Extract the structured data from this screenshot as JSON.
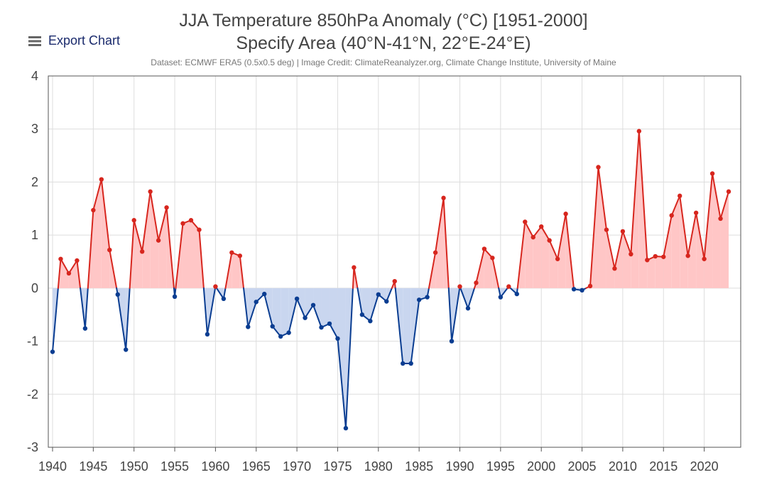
{
  "export_button": {
    "label": "Export Chart",
    "icon": "menu-icon"
  },
  "chart_data": {
    "type": "area",
    "title": "JJA Temperature 850hPa Anomaly (°C) [1951-2000]",
    "subtitle": "Specify Area (40°N-41°N, 22°E-24°E)",
    "credit": "Dataset: ECMWF ERA5 (0.5x0.5 deg) | Image Credit: ClimateReanalyzer.org, Climate Change Institute, University of Maine",
    "xlabel": "",
    "ylabel": "",
    "xlim": [
      1940,
      2023
    ],
    "ylim": [
      -3,
      4
    ],
    "grid": true,
    "x_ticks": [
      "1940",
      "1945",
      "1950",
      "1955",
      "1960",
      "1965",
      "1970",
      "1975",
      "1980",
      "1985",
      "1990",
      "1995",
      "2000",
      "2005",
      "2010",
      "2015",
      "2020"
    ],
    "y_ticks": [
      "4",
      "3",
      "2",
      "1",
      "0",
      "-1",
      "-2",
      "-3"
    ],
    "colors": {
      "positive_line": "#d7261e",
      "positive_fill": "#ffc6c6",
      "negative_line": "#0a3d91",
      "negative_fill": "#c9d6ef",
      "grid": "#dddddd",
      "axis": "#555555"
    },
    "x": [
      1940,
      1941,
      1942,
      1943,
      1944,
      1945,
      1946,
      1947,
      1948,
      1949,
      1950,
      1951,
      1952,
      1953,
      1954,
      1955,
      1956,
      1957,
      1958,
      1959,
      1960,
      1961,
      1962,
      1963,
      1964,
      1965,
      1966,
      1967,
      1968,
      1969,
      1970,
      1971,
      1972,
      1973,
      1974,
      1975,
      1976,
      1977,
      1978,
      1979,
      1980,
      1981,
      1982,
      1983,
      1984,
      1985,
      1986,
      1987,
      1988,
      1989,
      1990,
      1991,
      1992,
      1993,
      1994,
      1995,
      1996,
      1997,
      1998,
      1999,
      2000,
      2001,
      2002,
      2003,
      2004,
      2005,
      2006,
      2007,
      2008,
      2009,
      2010,
      2011,
      2012,
      2013,
      2014,
      2015,
      2016,
      2017,
      2018,
      2019,
      2020,
      2021,
      2022,
      2023
    ],
    "values": [
      -1.2,
      0.55,
      0.28,
      0.52,
      -0.76,
      1.47,
      2.05,
      0.72,
      -0.12,
      -1.16,
      1.28,
      0.69,
      1.82,
      0.9,
      1.52,
      -0.16,
      1.22,
      1.28,
      1.1,
      -0.87,
      0.03,
      -0.2,
      0.67,
      0.61,
      -0.73,
      -0.26,
      -0.11,
      -0.72,
      -0.91,
      -0.84,
      -0.2,
      -0.56,
      -0.32,
      -0.74,
      -0.67,
      -0.95,
      -2.64,
      0.39,
      -0.5,
      -0.62,
      -0.12,
      -0.25,
      0.13,
      -1.42,
      -1.42,
      -0.22,
      -0.17,
      0.67,
      1.7,
      -1.0,
      0.03,
      -0.38,
      0.1,
      0.74,
      0.57,
      -0.17,
      0.03,
      -0.11,
      1.25,
      0.96,
      1.16,
      0.9,
      0.55,
      1.4,
      -0.02,
      -0.04,
      0.04,
      2.28,
      1.1,
      0.37,
      1.07,
      0.64,
      2.96,
      0.53,
      0.6,
      0.59,
      1.37,
      1.74,
      0.61,
      1.42,
      0.55,
      2.16,
      1.31,
      1.82
    ]
  }
}
